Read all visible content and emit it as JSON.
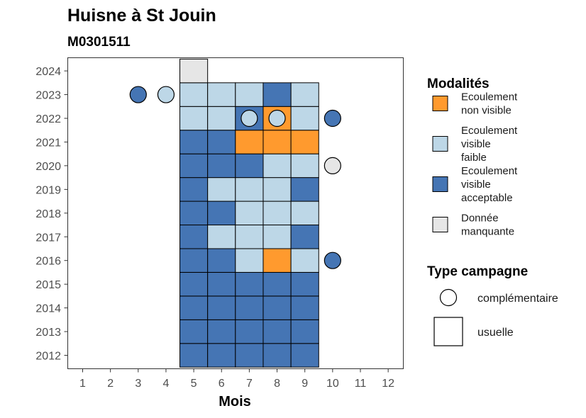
{
  "chart_data": {
    "type": "heatmap",
    "title": "Huisne à St Jouin",
    "subtitle": "M0301511",
    "xlabel": "Mois",
    "ylabel": "",
    "x_ticks": [
      1,
      2,
      3,
      4,
      5,
      6,
      7,
      8,
      9,
      10,
      11,
      12
    ],
    "y_ticks": [
      2012,
      2013,
      2014,
      2015,
      2016,
      2017,
      2018,
      2019,
      2020,
      2021,
      2022,
      2023,
      2024
    ],
    "xlim": [
      0.5,
      12.5
    ],
    "ylim": [
      2011.5,
      2024.5
    ],
    "colors": {
      "ecoulement_non_visible": "#FF9A2E",
      "ecoulement_visible_faible": "#BDD7E7",
      "ecoulement_visible_acceptable": "#4575B4",
      "donnee_manquante": "#E6E6E6"
    },
    "tiles": [
      {
        "year": 2012,
        "months": [
          5,
          6,
          7,
          8,
          9
        ],
        "values": [
          "acceptable",
          "acceptable",
          "acceptable",
          "acceptable",
          "acceptable"
        ]
      },
      {
        "year": 2013,
        "months": [
          5,
          6,
          7,
          8,
          9
        ],
        "values": [
          "acceptable",
          "acceptable",
          "acceptable",
          "acceptable",
          "acceptable"
        ]
      },
      {
        "year": 2014,
        "months": [
          5,
          6,
          7,
          8,
          9
        ],
        "values": [
          "acceptable",
          "acceptable",
          "acceptable",
          "acceptable",
          "acceptable"
        ]
      },
      {
        "year": 2015,
        "months": [
          5,
          6,
          7,
          8,
          9
        ],
        "values": [
          "acceptable",
          "acceptable",
          "acceptable",
          "acceptable",
          "acceptable"
        ]
      },
      {
        "year": 2016,
        "months": [
          5,
          6,
          7,
          8,
          9
        ],
        "values": [
          "acceptable",
          "acceptable",
          "faible",
          "non_visible",
          "faible"
        ]
      },
      {
        "year": 2017,
        "months": [
          5,
          6,
          7,
          8,
          9
        ],
        "values": [
          "acceptable",
          "faible",
          "faible",
          "faible",
          "acceptable"
        ]
      },
      {
        "year": 2018,
        "months": [
          5,
          6,
          7,
          8,
          9
        ],
        "values": [
          "acceptable",
          "acceptable",
          "faible",
          "faible",
          "faible"
        ]
      },
      {
        "year": 2019,
        "months": [
          5,
          6,
          7,
          8,
          9
        ],
        "values": [
          "acceptable",
          "faible",
          "faible",
          "faible",
          "acceptable"
        ]
      },
      {
        "year": 2020,
        "months": [
          5,
          6,
          7,
          8,
          9
        ],
        "values": [
          "acceptable",
          "acceptable",
          "acceptable",
          "faible",
          "faible"
        ]
      },
      {
        "year": 2021,
        "months": [
          5,
          6,
          7,
          8,
          9
        ],
        "values": [
          "acceptable",
          "acceptable",
          "non_visible",
          "non_visible",
          "non_visible"
        ]
      },
      {
        "year": 2022,
        "months": [
          5,
          6,
          7,
          8,
          9
        ],
        "values": [
          "faible",
          "faible",
          "acceptable",
          "non_visible",
          "faible"
        ]
      },
      {
        "year": 2023,
        "months": [
          5,
          6,
          7,
          8,
          9
        ],
        "values": [
          "faible",
          "faible",
          "faible",
          "acceptable",
          "faible"
        ]
      },
      {
        "year": 2024,
        "months": [
          5
        ],
        "values": [
          "manquante"
        ]
      }
    ],
    "points": [
      {
        "year": 2023,
        "month": 3,
        "value": "acceptable"
      },
      {
        "year": 2023,
        "month": 4,
        "value": "faible"
      },
      {
        "year": 2022,
        "month": 7,
        "value": "faible"
      },
      {
        "year": 2022,
        "month": 8,
        "value": "faible"
      },
      {
        "year": 2022,
        "month": 10,
        "value": "acceptable"
      },
      {
        "year": 2020,
        "month": 10,
        "value": "manquante"
      },
      {
        "year": 2016,
        "month": 10,
        "value": "acceptable"
      }
    ],
    "legend": {
      "placement": "right",
      "modalites_title": "Modalités",
      "modalites": [
        {
          "key": "non_visible",
          "color": "#FF9A2E",
          "lines": [
            "Ecoulement",
            "non visible"
          ]
        },
        {
          "key": "faible",
          "color": "#BDD7E7",
          "lines": [
            "Ecoulement",
            "visible",
            "faible"
          ]
        },
        {
          "key": "acceptable",
          "color": "#4575B4",
          "lines": [
            "Ecoulement",
            "visible",
            "acceptable"
          ]
        },
        {
          "key": "manquante",
          "color": "#E6E6E6",
          "lines": [
            "Donnée",
            "manquante"
          ]
        }
      ],
      "campagne_title": "Type campagne",
      "campagne": [
        {
          "shape": "circle",
          "label": "complémentaire"
        },
        {
          "shape": "square",
          "label": "usuelle"
        }
      ]
    }
  }
}
